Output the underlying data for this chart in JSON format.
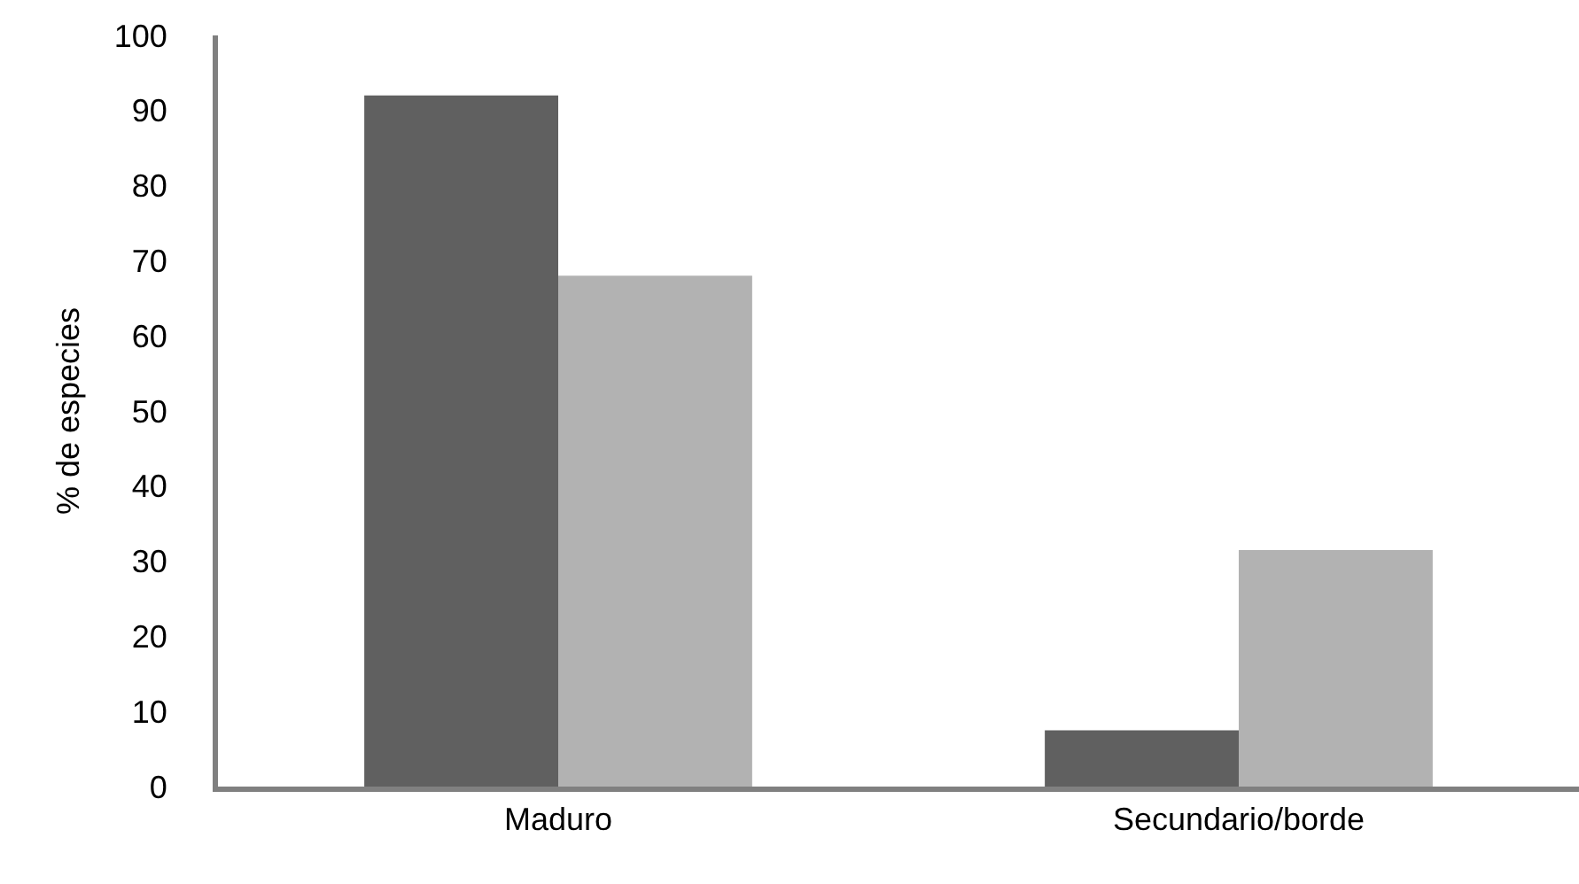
{
  "chart_data": {
    "type": "bar",
    "ylabel": "% de especies",
    "categories": [
      "Maduro",
      "Secundario/borde"
    ],
    "series": [
      {
        "color": "#606060",
        "values": [
          92,
          7.5
        ]
      },
      {
        "color": "#b2b2b2",
        "values": [
          68,
          31.5
        ]
      }
    ],
    "ylim": [
      0,
      100
    ],
    "yticks": [
      0,
      10,
      20,
      30,
      40,
      50,
      60,
      70,
      80,
      90,
      100
    ]
  }
}
